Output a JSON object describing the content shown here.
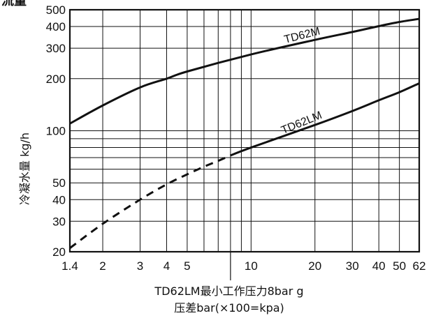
{
  "chart_data": {
    "type": "line",
    "corner_text": "流量",
    "ylabel": "冷凝水量 kg/h",
    "xlabel": "压差bar(×100=kpa)",
    "annotation": "TD62LM最小工作压力8bar g",
    "x_scale": "log",
    "y_scale": "log",
    "xlim": [
      1.4,
      62
    ],
    "ylim": [
      20,
      500
    ],
    "x_ticks": [
      1.4,
      2,
      3,
      4,
      5,
      10,
      20,
      30,
      40,
      50,
      62
    ],
    "x_tick_labels": [
      "1.4",
      "2",
      "3",
      "4",
      "5",
      "10",
      "20",
      "30",
      "40",
      "50",
      "62"
    ],
    "y_ticks": [
      20,
      30,
      40,
      50,
      100,
      200,
      300,
      400,
      500
    ],
    "y_tick_labels": [
      "20",
      "30",
      "40",
      "50",
      "100",
      "200",
      "300",
      "400",
      "500"
    ],
    "x_grid": [
      1.4,
      2,
      3,
      4,
      5,
      6,
      7,
      8,
      9,
      10,
      20,
      30,
      40,
      50,
      62
    ],
    "y_grid": [
      20,
      30,
      40,
      50,
      60,
      70,
      80,
      90,
      100,
      200,
      300,
      400,
      500
    ],
    "annotation_x": 8,
    "series": [
      {
        "name": "TD62M",
        "x": [
          1.4,
          2,
          3,
          4,
          5,
          10,
          20,
          30,
          40,
          50,
          62
        ],
        "values": [
          110,
          140,
          178,
          200,
          220,
          276,
          335,
          372,
          402,
          425,
          443
        ],
        "style": "solid"
      },
      {
        "name": "TD62LM",
        "x": [
          1.4,
          2,
          3,
          4,
          5,
          6,
          7,
          8
        ],
        "values": [
          21,
          29,
          40,
          49,
          56,
          62,
          67,
          72
        ],
        "style": "dashed"
      },
      {
        "name": "TD62LM",
        "x": [
          8,
          10,
          20,
          30,
          40,
          50,
          62
        ],
        "values": [
          72,
          80,
          108,
          130,
          150,
          167,
          188
        ],
        "style": "solid"
      }
    ]
  }
}
